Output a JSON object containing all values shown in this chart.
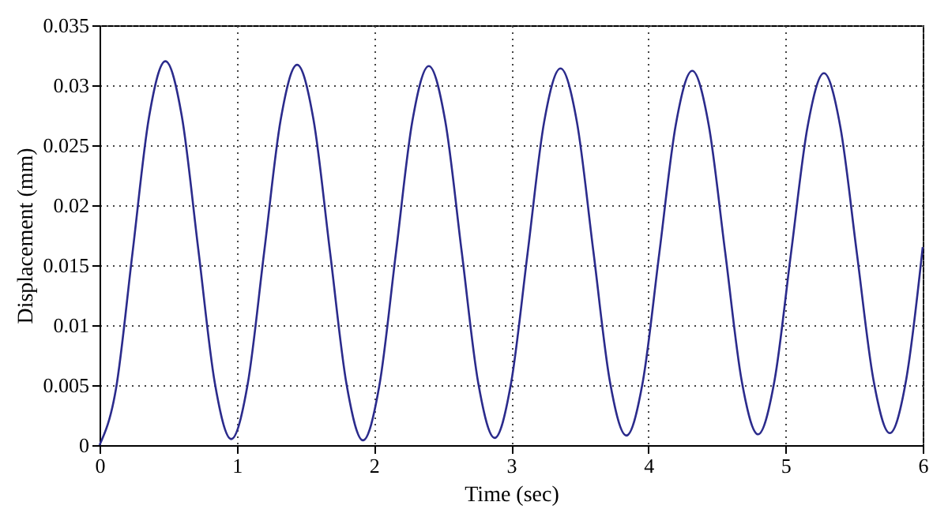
{
  "chart_data": {
    "type": "line",
    "xlabel": "Time (sec)",
    "ylabel": "Displacement  (mm)",
    "x": [
      0,
      0.12,
      0.24,
      0.36,
      0.48,
      0.6,
      0.72,
      0.84,
      0.96,
      1.08,
      1.2,
      1.32,
      1.44,
      1.56,
      1.68,
      1.8,
      1.92,
      2.04,
      2.16,
      2.28,
      2.4,
      2.52,
      2.64,
      2.76,
      2.88,
      3.0,
      3.12,
      3.24,
      3.36,
      3.48,
      3.6,
      3.72,
      3.84,
      3.96,
      4.08,
      4.2,
      4.32,
      4.44,
      4.56,
      4.68,
      4.8,
      4.92,
      5.04,
      5.16,
      5.28,
      5.4,
      5.52,
      5.64,
      5.76,
      5.88,
      6.0
    ],
    "series": [
      {
        "color": "#2b2b8c",
        "values": [
          0,
          0.0047,
          0.016,
          0.0273,
          0.032,
          0.0274,
          0.0163,
          0.0052,
          0.0005,
          0.0051,
          0.0161,
          0.0271,
          0.0317,
          0.0271,
          0.0161,
          0.0051,
          0.0004,
          0.005,
          0.016,
          0.027,
          0.0316,
          0.027,
          0.0161,
          0.0052,
          0.0006,
          0.0052,
          0.016,
          0.0269,
          0.0314,
          0.0269,
          0.0161,
          0.0053,
          0.0008,
          0.0053,
          0.016,
          0.0267,
          0.0312,
          0.0267,
          0.0161,
          0.0054,
          0.0009,
          0.0054,
          0.016,
          0.0265,
          0.031,
          0.0265,
          0.016,
          0.0055,
          0.001,
          0.0055,
          0.0165
        ]
      }
    ],
    "xlim": [
      0,
      6
    ],
    "xticks": [
      0,
      1,
      2,
      3,
      4,
      5,
      6
    ],
    "ylim": [
      0,
      0.035
    ],
    "yticks": [
      0,
      0.005,
      0.01,
      0.015,
      0.02,
      0.025,
      0.03,
      0.035
    ],
    "grid": true,
    "line_style": "solid",
    "marker": "none"
  }
}
